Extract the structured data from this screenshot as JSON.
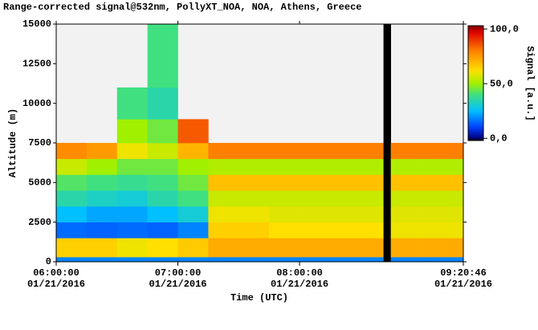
{
  "chart_data": {
    "type": "heatmap",
    "title": "Range-corrected signal@532nm, PollyXT_NOA, NOA, Athens, Greece",
    "x_label": "Time (UTC)",
    "y_label": "Altitude (m)",
    "colorbar_label": "Signal [a.u.]",
    "xlim": [
      6,
      9.3461
    ],
    "xticks": [
      {
        "value": 6,
        "label": "06:00:00"
      },
      {
        "value": 7,
        "label": "07:00:00"
      },
      {
        "value": 8,
        "label": "08:00:00"
      },
      {
        "value": 9.3461,
        "label": "09:20:46"
      }
    ],
    "xtick_dates": [
      "01/21/2016",
      "01/21/2016",
      "01/21/2016",
      "01/21/2016"
    ],
    "ylim": [
      0,
      15000
    ],
    "yticks": [
      0,
      2500,
      5000,
      7500,
      10000,
      12500,
      15000
    ],
    "zlim": [
      -2,
      103
    ],
    "zticks": [
      {
        "value": 100,
        "label": "100,0"
      },
      {
        "value": 50,
        "label": "50,0"
      },
      {
        "value": 0,
        "label": "0,0"
      }
    ],
    "xbins": [
      6,
      6.25,
      6.5,
      6.75,
      7,
      7.25,
      7.5,
      7.75,
      8,
      8.25,
      8.5,
      8.69,
      8.75,
      9,
      9.25,
      9.3461
    ],
    "ybins": [
      0,
      300,
      1500,
      2500,
      3500,
      4500,
      5500,
      6500,
      7500,
      9000,
      11000,
      15000
    ],
    "z": [
      [
        18,
        18,
        18,
        18,
        18,
        18,
        18,
        18,
        18,
        18,
        18,
        -5,
        18,
        18,
        18
      ],
      [
        65,
        65,
        60,
        62,
        66,
        72,
        72,
        72,
        72,
        72,
        72,
        -5,
        72,
        72,
        72
      ],
      [
        15,
        14,
        15,
        14,
        18,
        65,
        65,
        62,
        62,
        62,
        62,
        -5,
        60,
        60,
        60
      ],
      [
        25,
        22,
        22,
        25,
        30,
        60,
        60,
        58,
        58,
        58,
        58,
        -5,
        58,
        58,
        58
      ],
      [
        35,
        32,
        30,
        35,
        40,
        55,
        55,
        55,
        55,
        55,
        55,
        -5,
        55,
        55,
        55
      ],
      [
        42,
        40,
        38,
        40,
        45,
        68,
        68,
        68,
        68,
        68,
        68,
        -5,
        68,
        68,
        68
      ],
      [
        55,
        50,
        45,
        45,
        50,
        52,
        52,
        52,
        52,
        52,
        52,
        -5,
        52,
        52,
        52
      ],
      [
        78,
        75,
        60,
        55,
        70,
        80,
        80,
        80,
        80,
        80,
        80,
        -5,
        80,
        80,
        80
      ],
      [
        null,
        null,
        50,
        45,
        85,
        null,
        null,
        null,
        null,
        null,
        null,
        -5,
        null,
        null,
        null
      ],
      [
        null,
        null,
        40,
        35,
        null,
        null,
        null,
        null,
        null,
        null,
        null,
        -5,
        null,
        null,
        null
      ],
      [
        null,
        null,
        null,
        40,
        null,
        null,
        null,
        null,
        null,
        null,
        null,
        -5,
        null,
        null,
        null
      ]
    ]
  }
}
